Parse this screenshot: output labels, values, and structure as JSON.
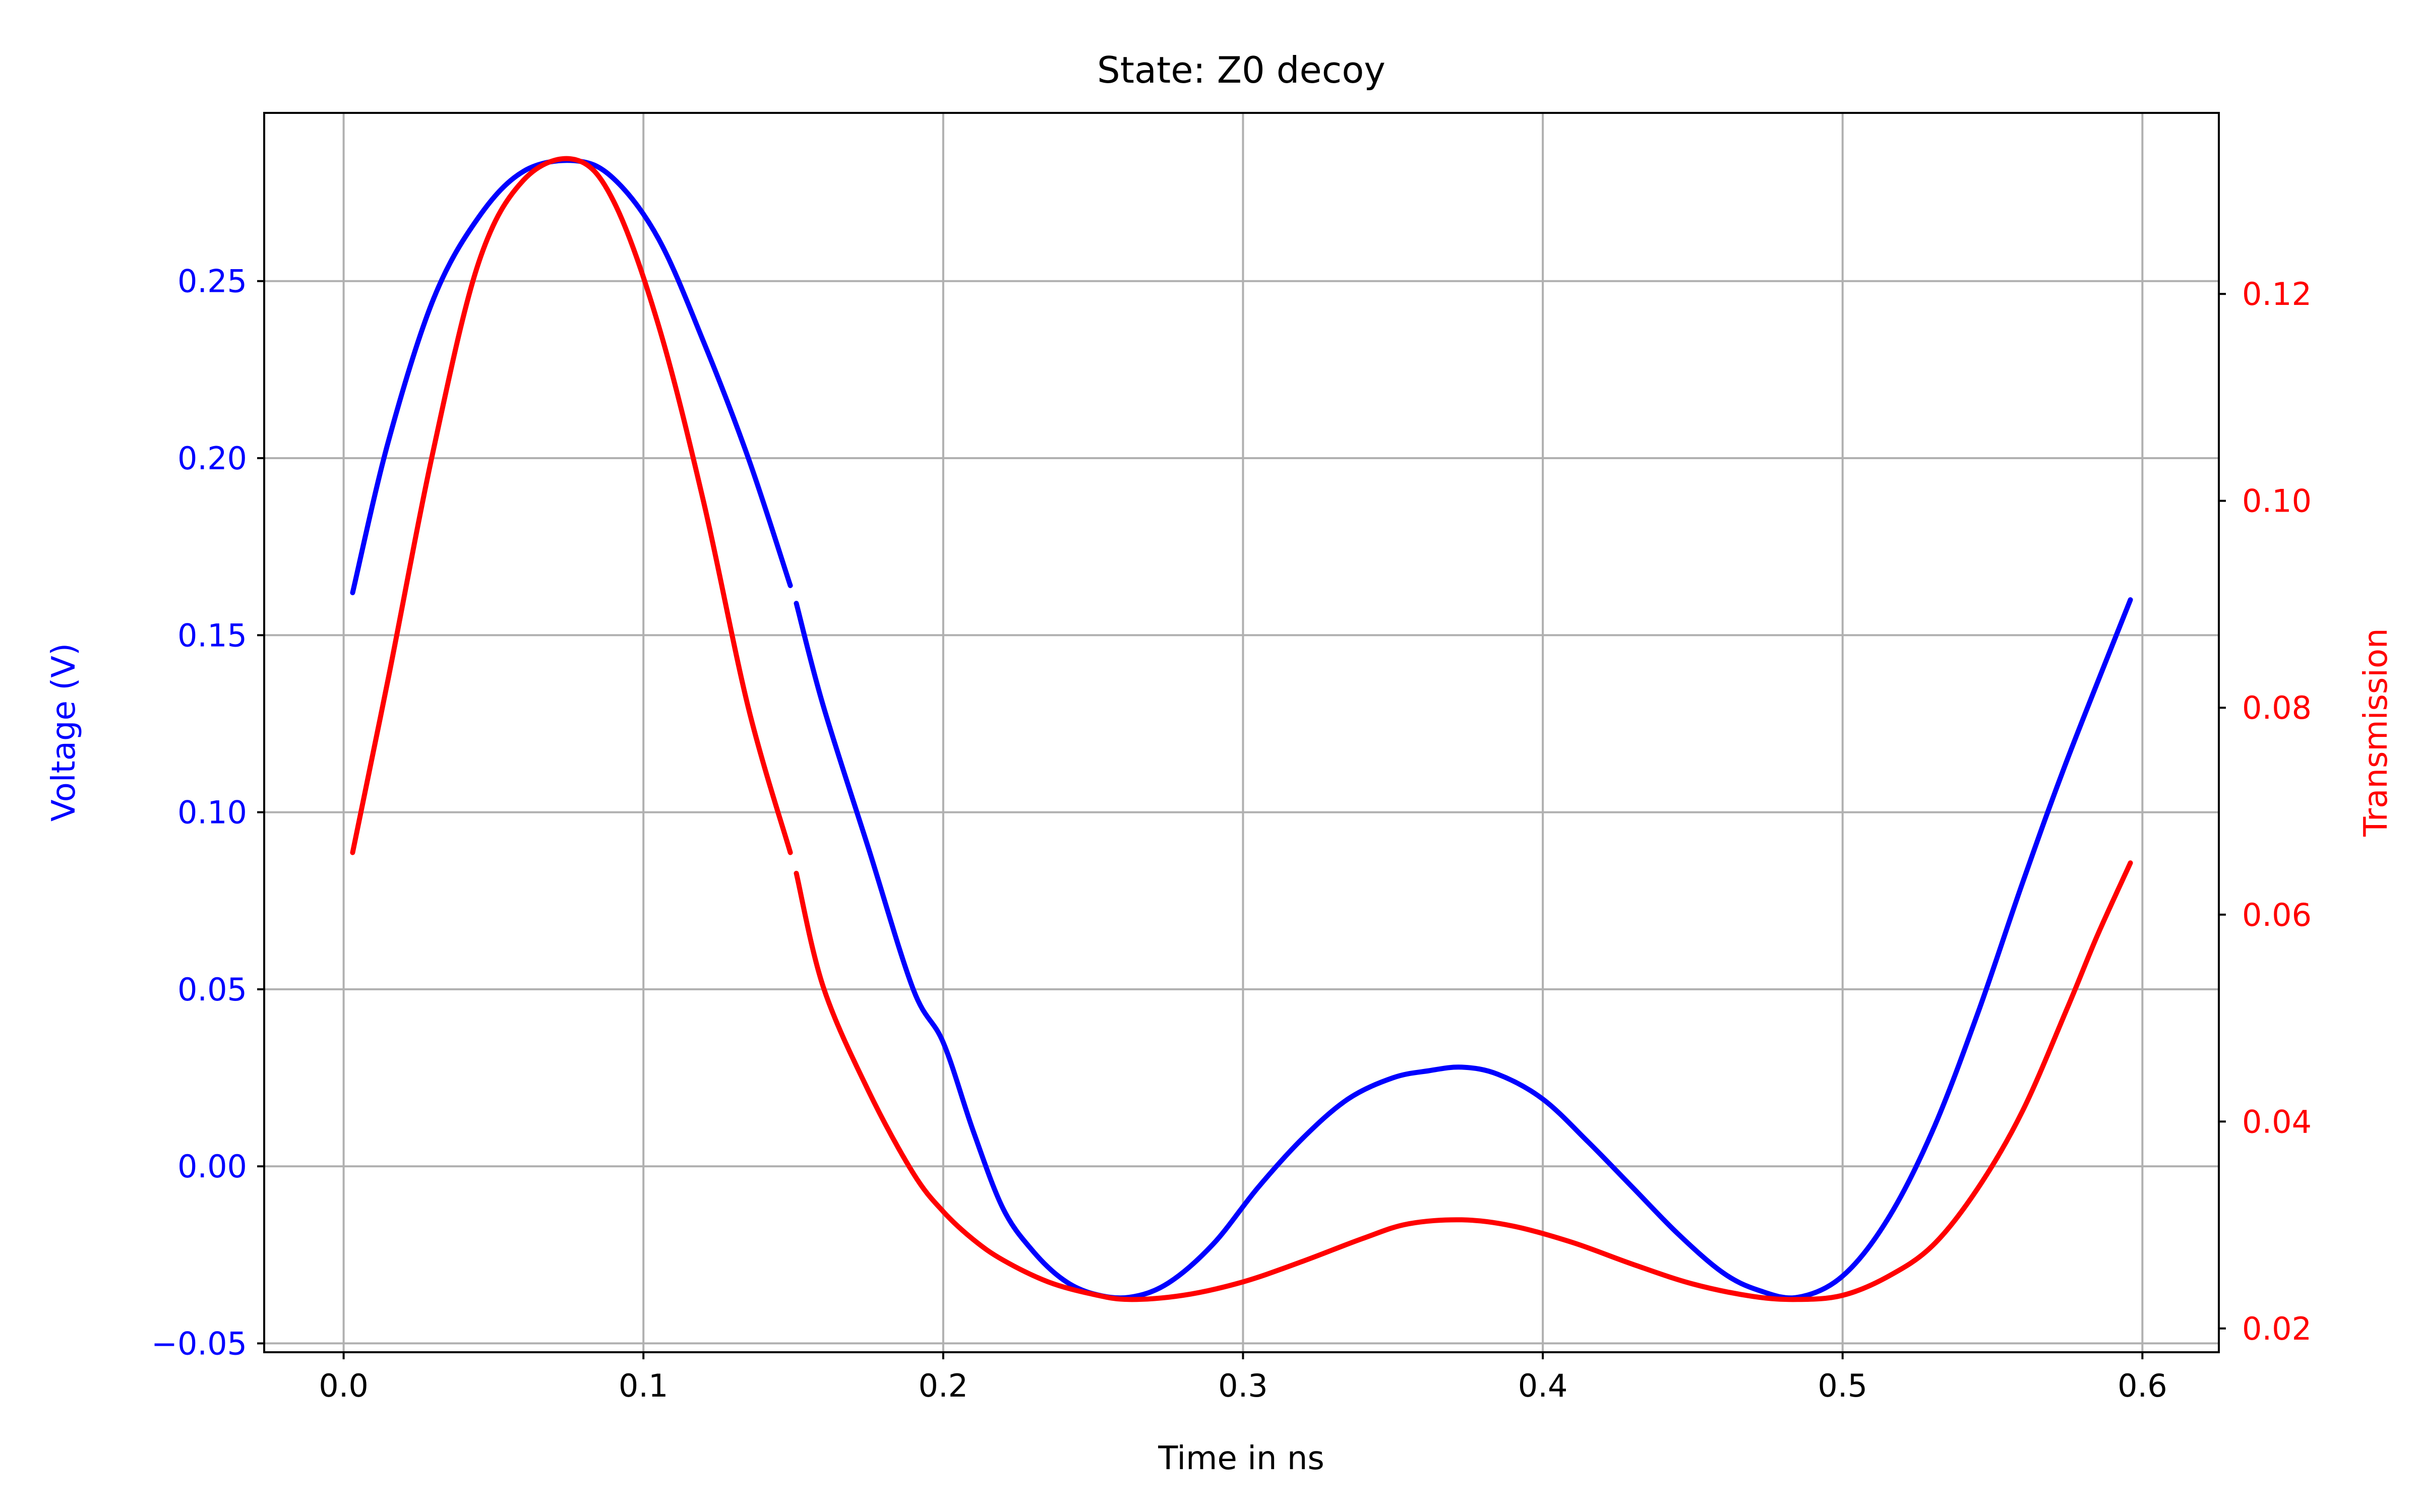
{
  "chart_data": {
    "type": "line",
    "title": "State: Z0 decoy",
    "xlabel": "Time in ns",
    "ylabel_left": "Voltage (V)",
    "ylabel_right": "Transmission",
    "xlim": [
      -0.0265,
      0.6255
    ],
    "ylim_left": [
      -0.0525,
      0.2975
    ],
    "ylim_right": [
      0.0177,
      0.1375
    ],
    "x_ticks": [
      0.0,
      0.1,
      0.2,
      0.3,
      0.4,
      0.5,
      0.6
    ],
    "x_tick_labels": [
      "0.0",
      "0.1",
      "0.2",
      "0.3",
      "0.4",
      "0.5",
      "0.6"
    ],
    "y_left_ticks": [
      -0.05,
      0.0,
      0.05,
      0.1,
      0.15,
      0.2,
      0.25
    ],
    "y_left_tick_labels": [
      "−0.05",
      "0.00",
      "0.05",
      "0.10",
      "0.15",
      "0.20",
      "0.25"
    ],
    "y_right_ticks": [
      0.02,
      0.04,
      0.06,
      0.08,
      0.1,
      0.12
    ],
    "y_right_tick_labels": [
      "0.02",
      "0.04",
      "0.06",
      "0.08",
      "0.10",
      "0.12"
    ],
    "grid": true,
    "colors": {
      "voltage": "#0000ff",
      "transmission": "#ff0000",
      "grid": "#b0b0b0",
      "axes": "#000000"
    },
    "series": [
      {
        "axis": "left",
        "color": "#0000ff",
        "segments": [
          {
            "x": [
              0.003,
              0.015,
              0.03,
              0.045,
              0.06,
              0.077,
              0.09,
              0.105,
              0.12,
              0.135,
              0.149
            ],
            "y": [
              0.162,
              0.205,
              0.245,
              0.268,
              0.281,
              0.284,
              0.279,
              0.262,
              0.233,
              0.2,
              0.164
            ]
          },
          {
            "x": [
              0.151,
              0.16,
              0.175,
              0.19,
              0.2,
              0.21,
              0.22,
              0.23,
              0.24,
              0.25,
              0.262,
              0.275,
              0.29,
              0.305,
              0.32,
              0.335,
              0.35,
              0.362,
              0.373,
              0.385,
              0.4,
              0.415,
              0.43,
              0.445,
              0.46,
              0.472,
              0.485,
              0.5,
              0.515,
              0.53,
              0.545,
              0.56,
              0.575,
              0.596
            ],
            "y": [
              0.159,
              0.13,
              0.09,
              0.05,
              0.035,
              0.01,
              -0.012,
              -0.024,
              -0.032,
              -0.036,
              -0.037,
              -0.033,
              -0.022,
              -0.006,
              0.008,
              0.019,
              0.025,
              0.027,
              0.028,
              0.026,
              0.019,
              0.007,
              -0.006,
              -0.019,
              -0.03,
              -0.035,
              -0.037,
              -0.031,
              -0.015,
              0.01,
              0.043,
              0.08,
              0.115,
              0.16
            ]
          }
        ]
      },
      {
        "axis": "right",
        "color": "#ff0000",
        "segments": [
          {
            "x": [
              0.003,
              0.015,
              0.03,
              0.045,
              0.06,
              0.077,
              0.09,
              0.105,
              0.12,
              0.135,
              0.149
            ],
            "y": [
              0.066,
              0.083,
              0.105,
              0.123,
              0.131,
              0.133,
              0.129,
              0.117,
              0.1,
              0.08,
              0.066
            ]
          },
          {
            "x": [
              0.151,
              0.16,
              0.175,
              0.19,
              0.2,
              0.21,
              0.22,
              0.235,
              0.25,
              0.262,
              0.28,
              0.3,
              0.32,
              0.34,
              0.355,
              0.373,
              0.39,
              0.41,
              0.43,
              0.45,
              0.47,
              0.485,
              0.5,
              0.515,
              0.53,
              0.545,
              0.56,
              0.575,
              0.585,
              0.596
            ],
            "y": [
              0.064,
              0.053,
              0.043,
              0.035,
              0.0313,
              0.0286,
              0.0266,
              0.0245,
              0.0233,
              0.0228,
              0.0232,
              0.0245,
              0.0265,
              0.0287,
              0.0301,
              0.0305,
              0.0299,
              0.0283,
              0.0262,
              0.0243,
              0.0231,
              0.0228,
              0.0232,
              0.025,
              0.028,
              0.0335,
              0.041,
              0.051,
              0.058,
              0.065
            ]
          }
        ]
      }
    ]
  }
}
